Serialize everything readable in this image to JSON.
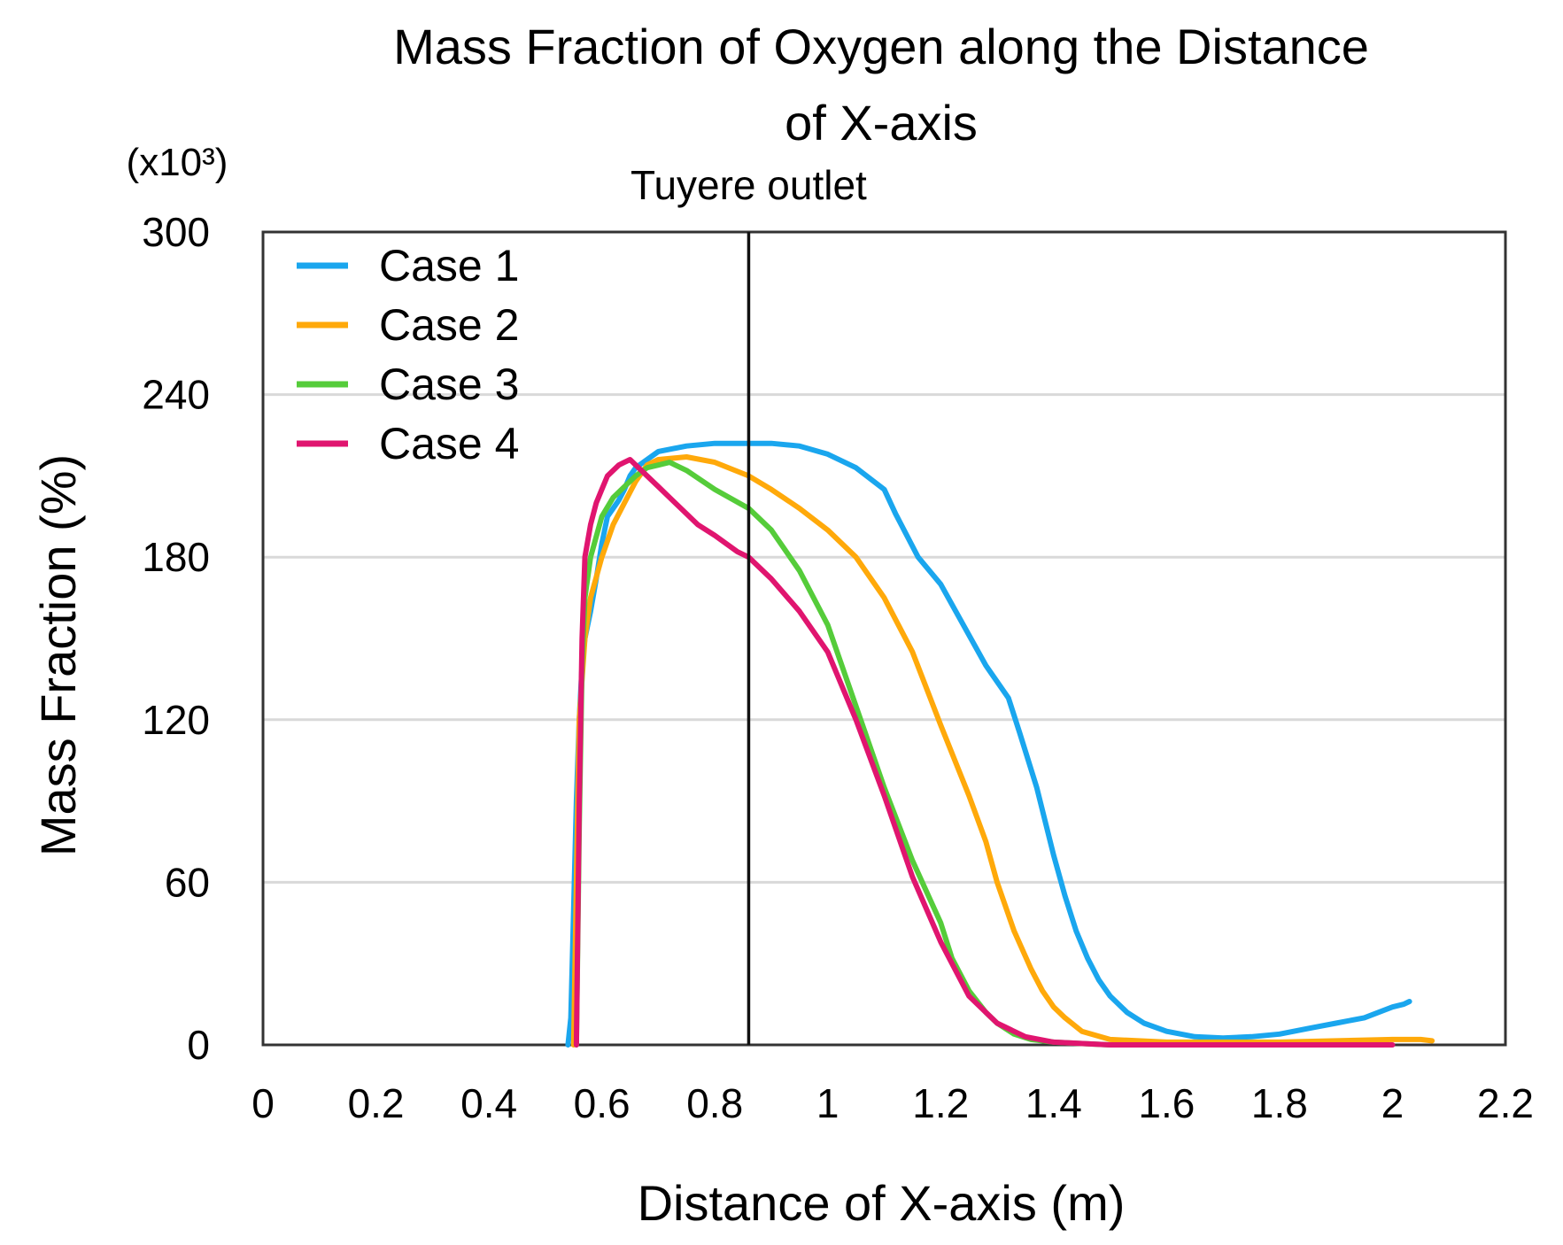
{
  "chart_data": {
    "type": "line",
    "title_lines": [
      "Mass Fraction of Oxygen along the Distance",
      "of X-axis"
    ],
    "xlabel": "Distance of X-axis (m)",
    "ylabel": "Mass Fraction (%)",
    "y_multiplier": "(x10³)",
    "xlim": [
      0,
      2.2
    ],
    "ylim": [
      0,
      300
    ],
    "x_ticks": [
      "0",
      "0.2",
      "0.4",
      "0.6",
      "0.8",
      "1",
      "1.2",
      "1.4",
      "1.6",
      "1.8",
      "2",
      "2.2"
    ],
    "y_ticks": [
      "0",
      "60",
      "120",
      "180",
      "240",
      "300"
    ],
    "grid": "horizontal",
    "legend_position": "top-left",
    "annotation": {
      "label": "Tuyere outlet",
      "x": 0.86
    },
    "series": [
      {
        "name": "Case 1",
        "color": "#1aa6ee",
        "x": [
          0.54,
          0.545,
          0.55,
          0.555,
          0.56,
          0.565,
          0.57,
          0.58,
          0.59,
          0.6,
          0.61,
          0.62,
          0.63,
          0.64,
          0.65,
          0.66,
          0.7,
          0.75,
          0.8,
          0.86,
          0.9,
          0.95,
          1.0,
          1.05,
          1.1,
          1.12,
          1.16,
          1.2,
          1.24,
          1.28,
          1.32,
          1.34,
          1.37,
          1.4,
          1.42,
          1.44,
          1.46,
          1.48,
          1.5,
          1.53,
          1.56,
          1.6,
          1.65,
          1.7,
          1.75,
          1.8,
          1.85,
          1.9,
          1.95,
          2.0,
          2.02,
          2.03
        ],
        "y": [
          0,
          10,
          50,
          90,
          120,
          140,
          150,
          160,
          172,
          185,
          195,
          198,
          201,
          205,
          210,
          213,
          219,
          221,
          222,
          222,
          222,
          221,
          218,
          213,
          205,
          196,
          180,
          170,
          155,
          140,
          128,
          115,
          95,
          70,
          55,
          42,
          32,
          24,
          18,
          12,
          8,
          5,
          3,
          2.5,
          3,
          4,
          6,
          8,
          10,
          14,
          15,
          16
        ]
      },
      {
        "name": "Case 2",
        "color": "#ffa90a",
        "x": [
          0.55,
          0.555,
          0.56,
          0.57,
          0.58,
          0.6,
          0.62,
          0.64,
          0.66,
          0.68,
          0.7,
          0.75,
          0.8,
          0.86,
          0.9,
          0.95,
          1.0,
          1.05,
          1.1,
          1.15,
          1.2,
          1.25,
          1.28,
          1.3,
          1.33,
          1.36,
          1.38,
          1.4,
          1.42,
          1.45,
          1.5,
          1.6,
          1.7,
          1.8,
          1.9,
          2.0,
          2.05,
          2.07
        ],
        "y": [
          0,
          60,
          120,
          150,
          165,
          180,
          192,
          200,
          208,
          214,
          216,
          217,
          215,
          210,
          205,
          198,
          190,
          180,
          165,
          145,
          118,
          92,
          75,
          60,
          42,
          28,
          20,
          14,
          10,
          5,
          2,
          1,
          1,
          1,
          1.5,
          2,
          2,
          1.5
        ]
      },
      {
        "name": "Case 3",
        "color": "#55cc3a",
        "x": [
          0.555,
          0.56,
          0.565,
          0.57,
          0.58,
          0.6,
          0.62,
          0.64,
          0.66,
          0.68,
          0.7,
          0.72,
          0.75,
          0.8,
          0.86,
          0.9,
          0.95,
          1.0,
          1.05,
          1.1,
          1.15,
          1.2,
          1.22,
          1.25,
          1.28,
          1.3,
          1.33,
          1.36,
          1.4,
          1.45,
          1.5
        ],
        "y": [
          0,
          80,
          140,
          165,
          180,
          195,
          202,
          206,
          210,
          213,
          214,
          215,
          212,
          205,
          198,
          190,
          175,
          155,
          125,
          95,
          68,
          45,
          32,
          20,
          12,
          8,
          4,
          2,
          1,
          0.5,
          0
        ]
      },
      {
        "name": "Case 4",
        "color": "#e0156f",
        "x": [
          0.555,
          0.56,
          0.565,
          0.57,
          0.58,
          0.59,
          0.6,
          0.61,
          0.62,
          0.63,
          0.64,
          0.65,
          0.66,
          0.67,
          0.7,
          0.73,
          0.77,
          0.8,
          0.84,
          0.86,
          0.9,
          0.95,
          1.0,
          1.05,
          1.1,
          1.15,
          1.2,
          1.25,
          1.3,
          1.35,
          1.4,
          1.5,
          1.6,
          1.7,
          1.8,
          1.9,
          2.0
        ],
        "y": [
          0,
          90,
          150,
          180,
          192,
          200,
          205,
          210,
          212,
          214,
          215,
          216,
          214,
          212,
          206,
          200,
          192,
          188,
          182,
          180,
          172,
          160,
          145,
          120,
          92,
          62,
          38,
          18,
          8,
          3,
          1,
          0,
          0,
          0,
          0,
          0,
          0
        ]
      }
    ]
  }
}
